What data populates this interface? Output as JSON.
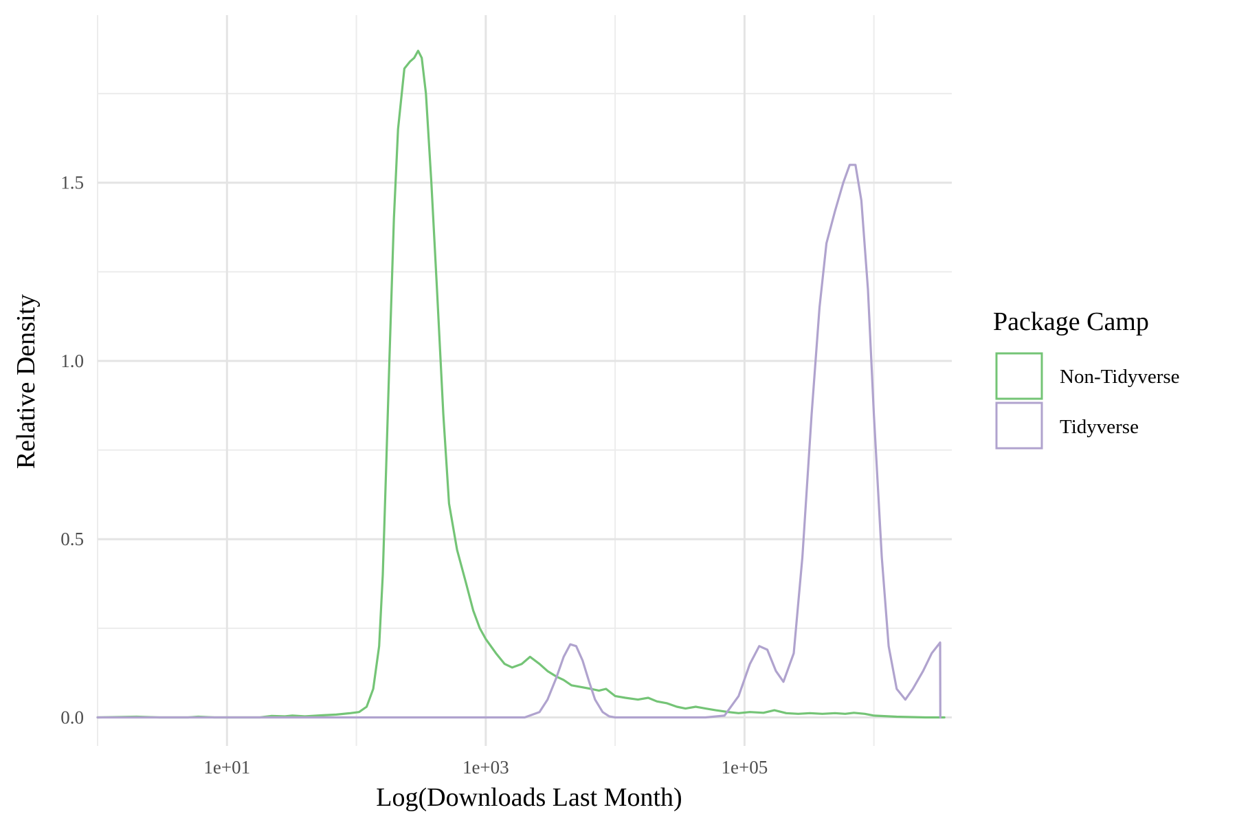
{
  "chart_data": {
    "type": "line",
    "title": "",
    "xlabel": "Log(Downloads Last Month)",
    "ylabel": "Relative Density",
    "x_scale": "log10",
    "xlim": [
      1,
      4000000
    ],
    "ylim": [
      -0.08,
      1.97
    ],
    "x_ticks": [
      {
        "value": 10,
        "label": "1e+01"
      },
      {
        "value": 1000,
        "label": "1e+03"
      },
      {
        "value": 100000,
        "label": "1e+05"
      }
    ],
    "y_ticks": [
      {
        "value": 0.0,
        "label": "0.0"
      },
      {
        "value": 0.5,
        "label": "0.5"
      },
      {
        "value": 1.0,
        "label": "1.0"
      },
      {
        "value": 1.5,
        "label": "1.5"
      }
    ],
    "grid": true,
    "legend": {
      "title": "Package Camp",
      "position": "right",
      "entries": [
        {
          "label": "Non-Tidyverse",
          "color": "#74c476"
        },
        {
          "label": "Tidyverse",
          "color": "#b0a3ce"
        }
      ]
    },
    "series": [
      {
        "name": "Non-Tidyverse",
        "color": "#74c476",
        "points": [
          [
            1,
            0.0
          ],
          [
            2,
            0.002
          ],
          [
            3,
            0.0
          ],
          [
            5,
            0.0
          ],
          [
            6,
            0.002
          ],
          [
            8,
            0.0
          ],
          [
            12,
            0.0
          ],
          [
            18,
            0.0
          ],
          [
            22,
            0.004
          ],
          [
            28,
            0.003
          ],
          [
            32,
            0.005
          ],
          [
            40,
            0.003
          ],
          [
            55,
            0.006
          ],
          [
            70,
            0.008
          ],
          [
            90,
            0.012
          ],
          [
            105,
            0.015
          ],
          [
            120,
            0.03
          ],
          [
            135,
            0.08
          ],
          [
            150,
            0.2
          ],
          [
            160,
            0.4
          ],
          [
            170,
            0.7
          ],
          [
            180,
            1.0
          ],
          [
            195,
            1.4
          ],
          [
            210,
            1.65
          ],
          [
            235,
            1.82
          ],
          [
            260,
            1.84
          ],
          [
            280,
            1.85
          ],
          [
            300,
            1.87
          ],
          [
            320,
            1.85
          ],
          [
            345,
            1.75
          ],
          [
            380,
            1.5
          ],
          [
            420,
            1.2
          ],
          [
            470,
            0.85
          ],
          [
            520,
            0.6
          ],
          [
            600,
            0.47
          ],
          [
            700,
            0.38
          ],
          [
            800,
            0.3
          ],
          [
            900,
            0.25
          ],
          [
            1000,
            0.22
          ],
          [
            1200,
            0.18
          ],
          [
            1400,
            0.15
          ],
          [
            1600,
            0.14
          ],
          [
            1900,
            0.15
          ],
          [
            2200,
            0.17
          ],
          [
            2600,
            0.15
          ],
          [
            3000,
            0.13
          ],
          [
            3500,
            0.115
          ],
          [
            4000,
            0.105
          ],
          [
            4600,
            0.09
          ],
          [
            5500,
            0.085
          ],
          [
            6500,
            0.08
          ],
          [
            7500,
            0.075
          ],
          [
            8500,
            0.08
          ],
          [
            10000,
            0.06
          ],
          [
            12000,
            0.055
          ],
          [
            15000,
            0.05
          ],
          [
            18000,
            0.055
          ],
          [
            21000,
            0.045
          ],
          [
            25000,
            0.04
          ],
          [
            30000,
            0.03
          ],
          [
            35000,
            0.025
          ],
          [
            42000,
            0.03
          ],
          [
            50000,
            0.025
          ],
          [
            60000,
            0.02
          ],
          [
            75000,
            0.015
          ],
          [
            90000,
            0.012
          ],
          [
            110000,
            0.015
          ],
          [
            140000,
            0.013
          ],
          [
            170000,
            0.02
          ],
          [
            210000,
            0.012
          ],
          [
            260000,
            0.01
          ],
          [
            320000,
            0.012
          ],
          [
            400000,
            0.01
          ],
          [
            500000,
            0.012
          ],
          [
            600000,
            0.01
          ],
          [
            700000,
            0.013
          ],
          [
            850000,
            0.01
          ],
          [
            1000000,
            0.005
          ],
          [
            1500000,
            0.002
          ],
          [
            2500000,
            0.0
          ],
          [
            3500000,
            0.0
          ]
        ]
      },
      {
        "name": "Tidyverse",
        "color": "#b0a3ce",
        "points": [
          [
            1,
            0.0
          ],
          [
            100,
            0.0
          ],
          [
            1000,
            0.0
          ],
          [
            2000,
            0.0
          ],
          [
            2600,
            0.015
          ],
          [
            3000,
            0.05
          ],
          [
            3500,
            0.11
          ],
          [
            4000,
            0.17
          ],
          [
            4500,
            0.205
          ],
          [
            5000,
            0.2
          ],
          [
            5600,
            0.16
          ],
          [
            6300,
            0.1
          ],
          [
            7000,
            0.05
          ],
          [
            8000,
            0.015
          ],
          [
            9000,
            0.003
          ],
          [
            10000,
            0.0
          ],
          [
            50000,
            0.0
          ],
          [
            70000,
            0.005
          ],
          [
            90000,
            0.06
          ],
          [
            110000,
            0.15
          ],
          [
            130000,
            0.2
          ],
          [
            150000,
            0.19
          ],
          [
            175000,
            0.13
          ],
          [
            200000,
            0.1
          ],
          [
            240000,
            0.18
          ],
          [
            280000,
            0.45
          ],
          [
            330000,
            0.85
          ],
          [
            380000,
            1.15
          ],
          [
            430000,
            1.33
          ],
          [
            500000,
            1.42
          ],
          [
            580000,
            1.5
          ],
          [
            650000,
            1.55
          ],
          [
            720000,
            1.55
          ],
          [
            800000,
            1.45
          ],
          [
            900000,
            1.2
          ],
          [
            1000000,
            0.85
          ],
          [
            1150000,
            0.45
          ],
          [
            1300000,
            0.2
          ],
          [
            1500000,
            0.08
          ],
          [
            1750000,
            0.05
          ],
          [
            2000000,
            0.08
          ],
          [
            2400000,
            0.13
          ],
          [
            2800000,
            0.18
          ],
          [
            3250000,
            0.21
          ],
          [
            3260000,
            0.0
          ]
        ]
      }
    ]
  }
}
